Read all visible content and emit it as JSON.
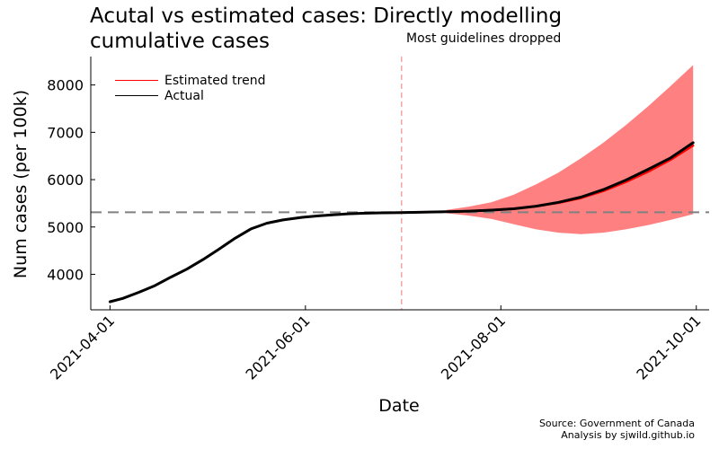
{
  "chart_data": {
    "type": "line",
    "title": "Acutal vs estimated cases: Directly modelling cumulative cases",
    "xlabel": "Date",
    "ylabel": "Num cases (per 100k)",
    "x_ticks": [
      "2021-04-01",
      "2021-06-01",
      "2021-08-01",
      "2021-10-01"
    ],
    "y_ticks": [
      4000,
      5000,
      6000,
      7000,
      8000
    ],
    "xlim": [
      "2021-03-26",
      "2021-10-05"
    ],
    "ylim": [
      3250,
      8600
    ],
    "grid": false,
    "legend_position": "top-left",
    "annotations": {
      "vline": {
        "date": "2021-07-01",
        "label": "Most guidelines dropped",
        "color": "#f4a6a6",
        "style": "dashed"
      },
      "hline": {
        "value": 5310,
        "color": "#808080",
        "style": "dashed"
      }
    },
    "series": [
      {
        "name": "Estimated trend",
        "color": "#ff0000",
        "x": [
          "2021-04-01",
          "2021-04-05",
          "2021-04-10",
          "2021-04-15",
          "2021-04-20",
          "2021-04-25",
          "2021-04-30",
          "2021-05-05",
          "2021-05-10",
          "2021-05-15",
          "2021-05-20",
          "2021-05-25",
          "2021-05-31",
          "2021-06-05",
          "2021-06-10",
          "2021-06-15",
          "2021-06-20",
          "2021-06-25",
          "2021-07-01",
          "2021-07-08",
          "2021-07-15",
          "2021-07-22",
          "2021-07-29",
          "2021-08-05",
          "2021-08-12",
          "2021-08-19",
          "2021-08-26",
          "2021-09-02",
          "2021-09-09",
          "2021-09-16",
          "2021-09-23",
          "2021-09-30"
        ],
        "values": [
          3420,
          3490,
          3620,
          3760,
          3940,
          4110,
          4310,
          4530,
          4760,
          4960,
          5080,
          5150,
          5205,
          5235,
          5260,
          5280,
          5292,
          5298,
          5305,
          5312,
          5322,
          5335,
          5356,
          5390,
          5440,
          5510,
          5610,
          5760,
          5950,
          6170,
          6420,
          6720
        ]
      },
      {
        "name": "Actual",
        "color": "#000000",
        "x": [
          "2021-04-01",
          "2021-04-05",
          "2021-04-10",
          "2021-04-15",
          "2021-04-20",
          "2021-04-25",
          "2021-04-30",
          "2021-05-05",
          "2021-05-10",
          "2021-05-15",
          "2021-05-20",
          "2021-05-25",
          "2021-05-31",
          "2021-06-05",
          "2021-06-10",
          "2021-06-15",
          "2021-06-20",
          "2021-06-25",
          "2021-07-01",
          "2021-07-08",
          "2021-07-15",
          "2021-07-22",
          "2021-07-29",
          "2021-08-05",
          "2021-08-12",
          "2021-08-19",
          "2021-08-26",
          "2021-09-02",
          "2021-09-09",
          "2021-09-16",
          "2021-09-23",
          "2021-09-30"
        ],
        "values": [
          3420,
          3490,
          3620,
          3760,
          3940,
          4110,
          4310,
          4530,
          4760,
          4960,
          5080,
          5150,
          5205,
          5235,
          5260,
          5280,
          5292,
          5298,
          5305,
          5312,
          5322,
          5335,
          5355,
          5385,
          5440,
          5520,
          5630,
          5790,
          5990,
          6220,
          6460,
          6780
        ]
      }
    ],
    "band": {
      "name": "Estimated trend uncertainty",
      "color": "#ff8080",
      "x": [
        "2021-07-15",
        "2021-07-22",
        "2021-07-29",
        "2021-08-05",
        "2021-08-12",
        "2021-08-19",
        "2021-08-26",
        "2021-09-02",
        "2021-09-09",
        "2021-09-16",
        "2021-09-23",
        "2021-09-30"
      ],
      "lower": [
        5290,
        5240,
        5170,
        5060,
        4950,
        4880,
        4850,
        4880,
        4950,
        5040,
        5150,
        5270
      ],
      "upper": [
        5360,
        5430,
        5520,
        5680,
        5900,
        6150,
        6450,
        6780,
        7150,
        7550,
        7980,
        8420
      ]
    }
  },
  "footer": {
    "source_line1": "Source: Government of Canada",
    "source_line2": "Analysis by sjwild.github.io"
  }
}
